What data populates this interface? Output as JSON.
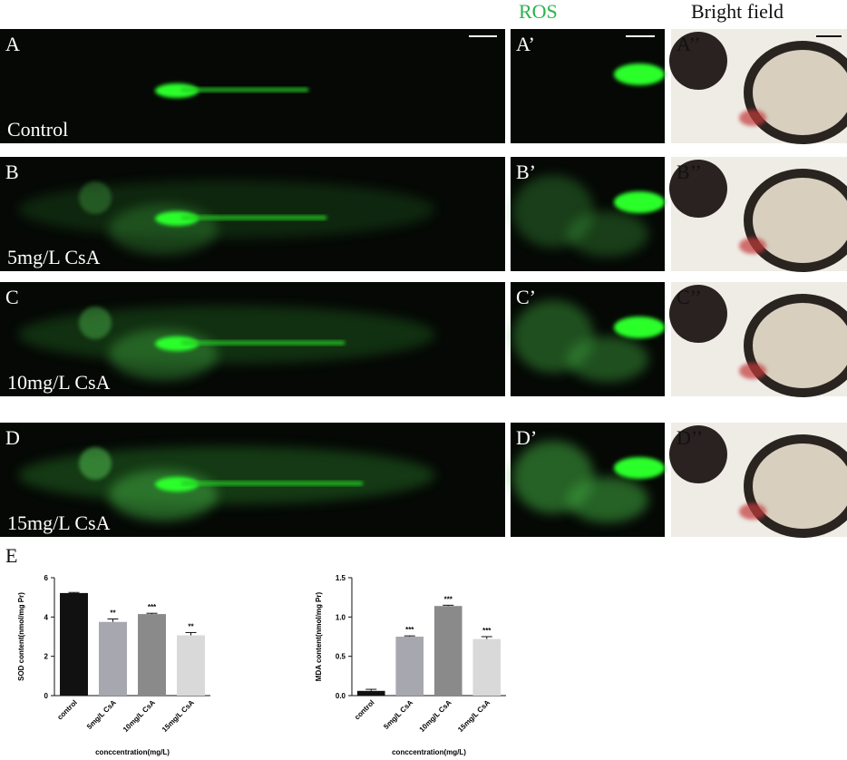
{
  "headers": {
    "ros": "ROS",
    "bright_field": "Bright field"
  },
  "rows": [
    {
      "labels": [
        "A",
        "A’",
        "A’’"
      ],
      "condition": "Control"
    },
    {
      "labels": [
        "B",
        "B’",
        "B’’"
      ],
      "condition": "5mg/L CsA"
    },
    {
      "labels": [
        "C",
        "C’",
        "C’’"
      ],
      "condition": "10mg/L CsA"
    },
    {
      "labels": [
        "D",
        "D’",
        "D’’"
      ],
      "condition": "15mg/L CsA"
    }
  ],
  "panel_e": "E",
  "chart_data": [
    {
      "type": "bar",
      "y_label": "SOD content(nmol/mg Pr)",
      "x_label": "conccentration(mg/L)",
      "categories": [
        "control",
        "5mg/L CsA",
        "10mg/L CsA",
        "15mg/L CsA"
      ],
      "values": [
        5.22,
        3.75,
        4.15,
        3.07
      ],
      "errors": [
        0.03,
        0.15,
        0.04,
        0.14
      ],
      "significance": [
        null,
        "**",
        "***",
        "**"
      ],
      "colors": [
        "#111111",
        "#a7a7b0",
        "#8a8a8a",
        "#d9d9d9"
      ],
      "ylim": [
        0,
        6
      ],
      "yticks": [
        0,
        2,
        4,
        6
      ]
    },
    {
      "type": "bar",
      "y_label": "MDA content(nmol/mg Pr)",
      "x_label": "conccentration(mg/L)",
      "categories": [
        "control",
        "5mg/L CsA",
        "10mg/L CsA",
        "15mg/L CsA"
      ],
      "values": [
        0.06,
        0.75,
        1.14,
        0.72
      ],
      "errors": [
        0.02,
        0.01,
        0.01,
        0.03
      ],
      "significance": [
        null,
        "***",
        "***",
        "***"
      ],
      "colors": [
        "#111111",
        "#a7a7b0",
        "#8a8a8a",
        "#d9d9d9"
      ],
      "ylim": [
        0,
        1.5
      ],
      "yticks": [
        {
          "value": 0,
          "label": "0.0"
        },
        0.5,
        {
          "value": 1,
          "label": "1.0"
        },
        1.5
      ]
    }
  ]
}
